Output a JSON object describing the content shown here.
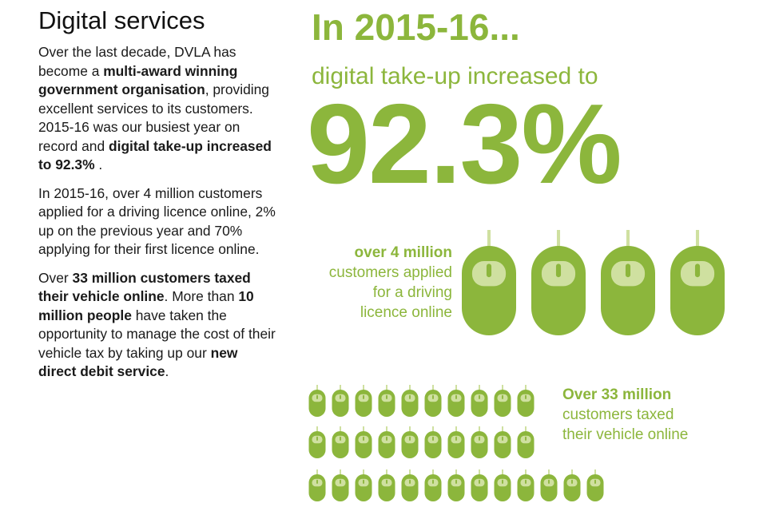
{
  "left": {
    "heading": "Digital services",
    "p1": [
      "Over the last decade, DVLA has become a ",
      "multi-award winning government organisation",
      ", providing excellent services to its customers. 2015-16 was our busiest year on record and ",
      "digital take-up increased to 92.3%",
      " ."
    ],
    "p2": "In 2015-16, over 4 million customers applied for a driving licence online, 2% up on the previous year and 70% applying for their first licence online.",
    "p3": [
      "Over ",
      "33 million customers taxed their vehicle online",
      ". More than ",
      "10 million people",
      " have taken the opportunity to manage the cost of their vehicle tax by taking up our ",
      "new direct debit service",
      "."
    ]
  },
  "right": {
    "headline": "In 2015-16...",
    "subheadline": "digital take-up increased to",
    "big_number": "92.3%",
    "stat1": {
      "bold": "over 4 million",
      "lines": [
        "customers applied",
        "for a driving",
        "licence online"
      ]
    },
    "stat2": {
      "bold": "Over 33 million",
      "lines": [
        "customers taxed",
        "their vehicle online"
      ]
    }
  },
  "colors": {
    "accent": "#8cb63c",
    "accent_light": "#cfe0a0",
    "text": "#1a1a1a"
  },
  "icons": {
    "large_mouse_count": 4,
    "small_mouse_rows": [
      10,
      10,
      13
    ]
  }
}
